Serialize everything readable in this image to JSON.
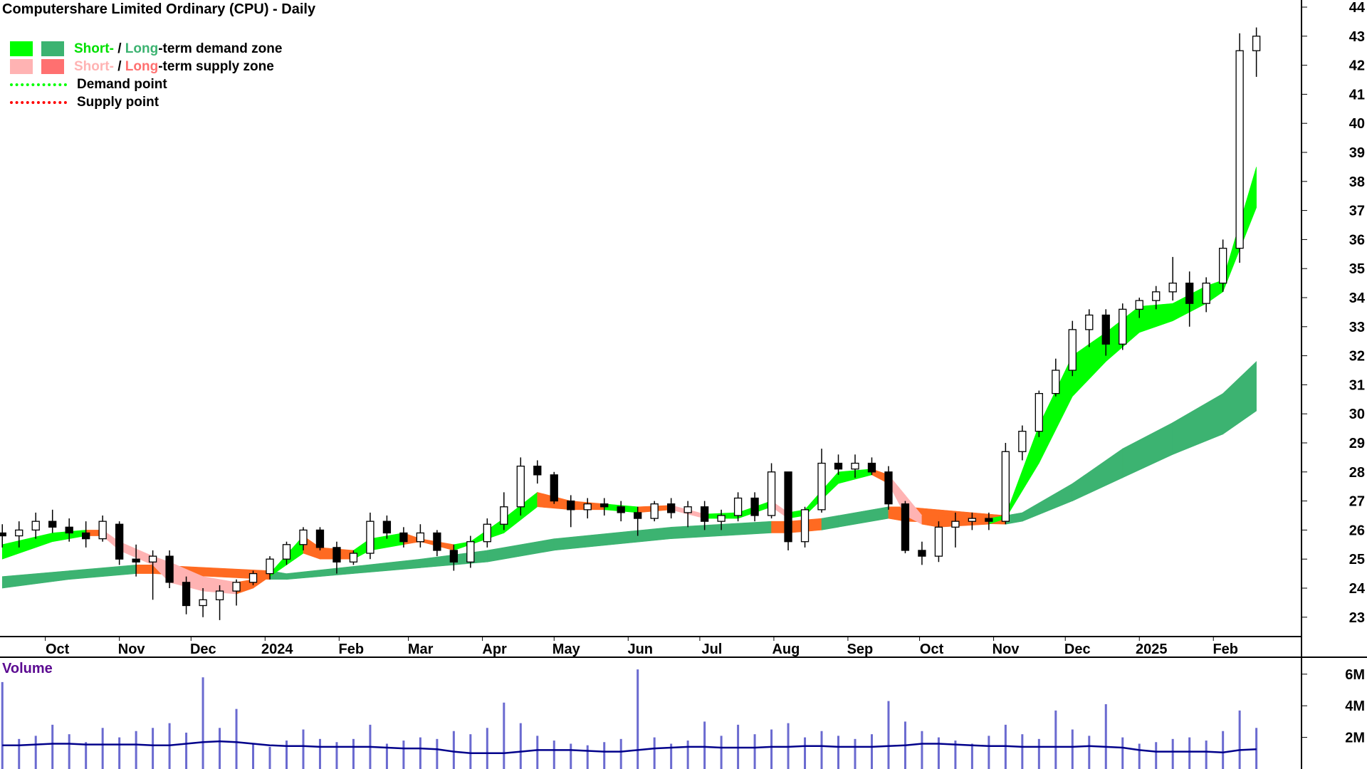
{
  "title": "Computershare Limited Ordinary (CPU) - Daily",
  "legend": {
    "demand_short": "Short-",
    "sep1": " / ",
    "demand_long": "Long",
    "demand_rest": "-term demand zone",
    "supply_short": "Short-",
    "sep2": " / ",
    "supply_long": "Long",
    "supply_rest": "-term supply zone",
    "demand_point": "Demand point",
    "supply_point": "Supply point"
  },
  "colors": {
    "short_demand": "#00ff00",
    "long_demand": "#3cb371",
    "short_supply": "#ffb3b3",
    "long_supply": "#ff7070",
    "transition": "#ff6a21",
    "demand_point": "#00ff00",
    "supply_point": "#ff0000",
    "volume": "#6a6ad0",
    "volume_avg": "#00008b",
    "volume_label": "#5b0a91"
  },
  "volume_label": "Volume",
  "chart_data": {
    "type": "candlestick",
    "title": "Computershare Limited Ordinary (CPU) - Daily",
    "y_ticks": [
      "23",
      "24",
      "25",
      "26",
      "27",
      "28",
      "29",
      "30",
      "31",
      "32",
      "33",
      "34",
      "35",
      "36",
      "37",
      "38",
      "39",
      "40",
      "41",
      "42",
      "43",
      "44"
    ],
    "ylim": [
      22.5,
      44.2
    ],
    "volume_ticks": [
      "2M",
      "4M",
      "6M"
    ],
    "volume_ylim": [
      0,
      6.2
    ],
    "x_ticks": [
      {
        "label": "Oct",
        "date": "2023-10-01"
      },
      {
        "label": "Nov",
        "date": "2023-11-01"
      },
      {
        "label": "Dec",
        "date": "2023-12-01"
      },
      {
        "label": "2024",
        "date": "2024-01-01"
      },
      {
        "label": "Feb",
        "date": "2024-02-01"
      },
      {
        "label": "Mar",
        "date": "2024-03-01"
      },
      {
        "label": "Apr",
        "date": "2024-04-01"
      },
      {
        "label": "May",
        "date": "2024-05-01"
      },
      {
        "label": "Jun",
        "date": "2024-06-01"
      },
      {
        "label": "Jul",
        "date": "2024-07-01"
      },
      {
        "label": "Aug",
        "date": "2024-08-01"
      },
      {
        "label": "Sep",
        "date": "2024-09-01"
      },
      {
        "label": "Oct",
        "date": "2024-10-01"
      },
      {
        "label": "Nov",
        "date": "2024-11-01"
      },
      {
        "label": "Dec",
        "date": "2024-12-01"
      },
      {
        "label": "2025",
        "date": "2025-01-01"
      },
      {
        "label": "Feb",
        "date": "2025-02-01"
      }
    ],
    "first_week": "2023-09-11",
    "ohlc_weekly": [
      [
        25.9,
        26.2,
        25.4,
        25.8
      ],
      [
        25.8,
        26.3,
        25.4,
        26.0
      ],
      [
        26.0,
        26.6,
        25.7,
        26.3
      ],
      [
        26.3,
        26.7,
        25.9,
        26.1
      ],
      [
        26.1,
        26.4,
        25.6,
        25.9
      ],
      [
        25.9,
        26.3,
        25.4,
        25.7
      ],
      [
        25.7,
        26.5,
        25.6,
        26.3
      ],
      [
        26.2,
        26.3,
        24.8,
        25.0
      ],
      [
        25.0,
        25.5,
        24.4,
        24.9
      ],
      [
        24.9,
        25.3,
        23.6,
        25.1
      ],
      [
        25.1,
        25.3,
        24.0,
        24.2
      ],
      [
        24.2,
        24.4,
        23.1,
        23.4
      ],
      [
        23.4,
        24.0,
        23.0,
        23.6
      ],
      [
        23.6,
        24.1,
        22.9,
        23.9
      ],
      [
        23.9,
        24.3,
        23.4,
        24.2
      ],
      [
        24.2,
        24.6,
        24.1,
        24.5
      ],
      [
        24.5,
        25.1,
        24.3,
        25.0
      ],
      [
        25.0,
        25.6,
        24.8,
        25.5
      ],
      [
        25.5,
        26.1,
        25.3,
        26.0
      ],
      [
        26.0,
        26.1,
        25.3,
        25.4
      ],
      [
        25.4,
        25.6,
        24.5,
        24.9
      ],
      [
        24.9,
        25.3,
        24.8,
        25.2
      ],
      [
        25.2,
        26.6,
        25.0,
        26.3
      ],
      [
        26.3,
        26.5,
        25.7,
        25.9
      ],
      [
        25.9,
        26.1,
        25.4,
        25.6
      ],
      [
        25.6,
        26.2,
        25.4,
        25.9
      ],
      [
        25.9,
        26.0,
        25.1,
        25.3
      ],
      [
        25.3,
        25.5,
        24.6,
        24.9
      ],
      [
        24.9,
        25.8,
        24.7,
        25.6
      ],
      [
        25.6,
        26.4,
        25.4,
        26.2
      ],
      [
        26.2,
        27.3,
        26.0,
        26.8
      ],
      [
        26.8,
        28.5,
        26.5,
        28.2
      ],
      [
        28.2,
        28.4,
        27.6,
        27.9
      ],
      [
        27.9,
        28.0,
        26.9,
        27.0
      ],
      [
        27.0,
        27.2,
        26.1,
        26.7
      ],
      [
        26.7,
        27.1,
        26.4,
        26.9
      ],
      [
        26.9,
        27.1,
        26.5,
        26.8
      ],
      [
        26.8,
        27.0,
        26.3,
        26.6
      ],
      [
        26.6,
        26.8,
        25.8,
        26.4
      ],
      [
        26.4,
        27.0,
        26.3,
        26.9
      ],
      [
        26.9,
        27.1,
        26.4,
        26.6
      ],
      [
        26.6,
        27.0,
        26.1,
        26.8
      ],
      [
        26.8,
        27.0,
        26.0,
        26.3
      ],
      [
        26.3,
        26.7,
        26.0,
        26.5
      ],
      [
        26.5,
        27.3,
        26.3,
        27.1
      ],
      [
        27.1,
        27.3,
        26.3,
        26.5
      ],
      [
        26.5,
        28.3,
        26.4,
        28.0
      ],
      [
        28.0,
        28.0,
        25.3,
        25.6
      ],
      [
        25.6,
        26.8,
        25.4,
        26.7
      ],
      [
        26.7,
        28.8,
        26.6,
        28.3
      ],
      [
        28.3,
        28.6,
        27.9,
        28.1
      ],
      [
        28.1,
        28.6,
        27.8,
        28.3
      ],
      [
        28.3,
        28.5,
        27.9,
        28.0
      ],
      [
        28.0,
        28.2,
        26.7,
        26.9
      ],
      [
        26.9,
        27.0,
        25.2,
        25.3
      ],
      [
        25.3,
        25.6,
        24.8,
        25.1
      ],
      [
        25.1,
        26.3,
        24.9,
        26.1
      ],
      [
        26.1,
        26.6,
        25.4,
        26.3
      ],
      [
        26.3,
        26.6,
        26.0,
        26.4
      ],
      [
        26.4,
        26.6,
        26.0,
        26.3
      ],
      [
        26.3,
        29.0,
        26.2,
        28.7
      ],
      [
        28.7,
        29.6,
        28.4,
        29.4
      ],
      [
        29.4,
        30.8,
        29.2,
        30.7
      ],
      [
        30.7,
        31.9,
        30.6,
        31.5
      ],
      [
        31.5,
        33.2,
        31.3,
        32.9
      ],
      [
        32.9,
        33.6,
        32.3,
        33.4
      ],
      [
        33.4,
        33.6,
        32.0,
        32.4
      ],
      [
        32.4,
        33.8,
        32.2,
        33.6
      ],
      [
        33.6,
        34.0,
        33.3,
        33.9
      ],
      [
        33.9,
        34.4,
        33.6,
        34.2
      ],
      [
        34.2,
        35.4,
        33.9,
        34.5
      ],
      [
        34.5,
        34.9,
        33.0,
        33.8
      ],
      [
        33.8,
        34.7,
        33.5,
        34.5
      ],
      [
        34.5,
        36.0,
        34.2,
        35.7
      ],
      [
        35.7,
        43.1,
        35.2,
        42.5
      ],
      [
        42.5,
        43.3,
        41.6,
        43.0
      ]
    ],
    "short_zone": [
      [
        0,
        25.0,
        25.5,
        "demand"
      ],
      [
        3,
        25.6,
        25.9,
        "demand"
      ],
      [
        5,
        25.8,
        26.0,
        "transition"
      ],
      [
        6,
        25.8,
        26.0,
        "supply"
      ],
      [
        7,
        25.3,
        25.6,
        "supply"
      ],
      [
        9,
        24.8,
        25.1,
        "supply"
      ],
      [
        10,
        24.2,
        24.9,
        "supply"
      ],
      [
        12,
        23.9,
        24.4,
        "supply"
      ],
      [
        14,
        23.8,
        24.2,
        "transition"
      ],
      [
        15,
        24.0,
        24.3,
        "transition"
      ],
      [
        16,
        24.4,
        24.5,
        "demand"
      ],
      [
        18,
        25.2,
        25.8,
        "transition"
      ],
      [
        19,
        25.0,
        25.4,
        "transition"
      ],
      [
        21,
        25.0,
        25.3,
        "demand"
      ],
      [
        22,
        25.3,
        25.7,
        "demand"
      ],
      [
        24,
        25.5,
        25.9,
        "transition"
      ],
      [
        25,
        25.6,
        25.7,
        "transition"
      ],
      [
        27,
        25.3,
        25.5,
        "demand"
      ],
      [
        28,
        25.5,
        25.6,
        "demand"
      ],
      [
        30,
        25.9,
        26.4,
        "demand"
      ],
      [
        32,
        26.8,
        27.3,
        "transition"
      ],
      [
        34,
        26.7,
        27.0,
        "transition"
      ],
      [
        36,
        26.7,
        26.9,
        "demand"
      ],
      [
        38,
        26.6,
        26.8,
        "transition"
      ],
      [
        40,
        26.7,
        26.85,
        "supply"
      ],
      [
        42,
        26.4,
        26.55,
        "demand"
      ],
      [
        44,
        26.4,
        26.6,
        "demand"
      ],
      [
        46,
        26.8,
        27.0,
        "supply"
      ],
      [
        47,
        26.4,
        26.6,
        "demand"
      ],
      [
        48,
        26.5,
        26.7,
        "demand"
      ],
      [
        50,
        27.6,
        28.0,
        "demand"
      ],
      [
        52,
        27.9,
        28.1,
        "transition"
      ],
      [
        53,
        27.6,
        27.9,
        "supply"
      ],
      [
        54,
        26.5,
        27.2,
        "supply"
      ],
      [
        55,
        26.2,
        26.5,
        "transition"
      ],
      [
        56,
        26.1,
        26.5,
        "transition"
      ],
      [
        59,
        26.2,
        26.4,
        "demand"
      ],
      [
        60,
        26.4,
        26.5,
        "demand"
      ],
      [
        62,
        28.3,
        29.6,
        "demand"
      ],
      [
        64,
        30.6,
        32.0,
        "demand"
      ],
      [
        66,
        31.8,
        32.8,
        "demand"
      ],
      [
        68,
        32.8,
        33.7,
        "demand"
      ],
      [
        70,
        33.2,
        33.8,
        "demand"
      ],
      [
        72,
        33.8,
        34.4,
        "demand"
      ],
      [
        73,
        34.2,
        34.6,
        "demand"
      ],
      [
        75,
        37.1,
        38.5,
        "demand"
      ]
    ],
    "long_zone": [
      [
        0,
        24.0,
        24.4,
        "demand"
      ],
      [
        4,
        24.3,
        24.6,
        "demand"
      ],
      [
        8,
        24.5,
        24.8,
        "transition"
      ],
      [
        9,
        24.5,
        24.8,
        "transition"
      ],
      [
        16,
        24.3,
        24.6,
        "demand"
      ],
      [
        17,
        24.3,
        24.5,
        "demand"
      ],
      [
        25,
        24.7,
        25.0,
        "demand"
      ],
      [
        29,
        24.9,
        25.3,
        "demand"
      ],
      [
        33,
        25.3,
        25.7,
        "demand"
      ],
      [
        40,
        25.7,
        26.1,
        "demand"
      ],
      [
        46,
        25.9,
        26.3,
        "transition"
      ],
      [
        47,
        25.9,
        26.3,
        "transition"
      ],
      [
        49,
        26.0,
        26.4,
        "demand"
      ],
      [
        50,
        26.1,
        26.5,
        "demand"
      ],
      [
        53,
        26.4,
        26.8,
        "transition"
      ],
      [
        54,
        26.3,
        26.8,
        "transition"
      ],
      [
        60,
        26.2,
        26.5,
        "demand"
      ],
      [
        61,
        26.3,
        26.6,
        "demand"
      ],
      [
        64,
        27.0,
        27.6,
        "demand"
      ],
      [
        67,
        27.8,
        28.8,
        "demand"
      ],
      [
        70,
        28.6,
        29.7,
        "demand"
      ],
      [
        73,
        29.3,
        30.7,
        "demand"
      ],
      [
        75,
        30.1,
        31.8,
        "demand"
      ]
    ],
    "volume_m": [
      5.5,
      1.9,
      2.1,
      2.8,
      2.2,
      1.7,
      2.6,
      2.0,
      2.4,
      2.6,
      2.9,
      2.3,
      5.8,
      2.6,
      3.8,
      1.6,
      1.4,
      1.8,
      2.5,
      1.9,
      1.7,
      1.9,
      2.8,
      1.6,
      1.8,
      2.0,
      1.9,
      2.4,
      2.2,
      2.6,
      4.2,
      2.9,
      2.1,
      1.8,
      1.6,
      1.5,
      1.7,
      1.9,
      6.3,
      2.0,
      1.6,
      1.8,
      3.0,
      2.1,
      2.8,
      2.2,
      2.5,
      2.9,
      2.0,
      2.4,
      2.1,
      1.9,
      2.2,
      4.3,
      3.0,
      2.4,
      2.0,
      1.8,
      1.6,
      2.1,
      2.8,
      2.2,
      1.9,
      3.7,
      2.5,
      2.1,
      4.1,
      2.0,
      1.6,
      1.7,
      1.9,
      2.0,
      1.8,
      2.4,
      3.7,
      2.6
    ],
    "volume_avg_m": [
      1.5,
      1.5,
      1.55,
      1.6,
      1.6,
      1.55,
      1.55,
      1.55,
      1.55,
      1.5,
      1.5,
      1.6,
      1.7,
      1.75,
      1.7,
      1.6,
      1.5,
      1.45,
      1.45,
      1.4,
      1.4,
      1.4,
      1.4,
      1.35,
      1.3,
      1.3,
      1.25,
      1.1,
      1.0,
      1.0,
      1.0,
      1.1,
      1.2,
      1.2,
      1.2,
      1.15,
      1.1,
      1.1,
      1.2,
      1.3,
      1.35,
      1.4,
      1.4,
      1.35,
      1.35,
      1.35,
      1.4,
      1.4,
      1.45,
      1.45,
      1.4,
      1.4,
      1.4,
      1.45,
      1.5,
      1.6,
      1.6,
      1.55,
      1.5,
      1.45,
      1.45,
      1.4,
      1.4,
      1.4,
      1.4,
      1.45,
      1.4,
      1.35,
      1.2,
      1.1,
      1.1,
      1.1,
      1.1,
      1.05,
      1.2,
      1.25
    ]
  }
}
